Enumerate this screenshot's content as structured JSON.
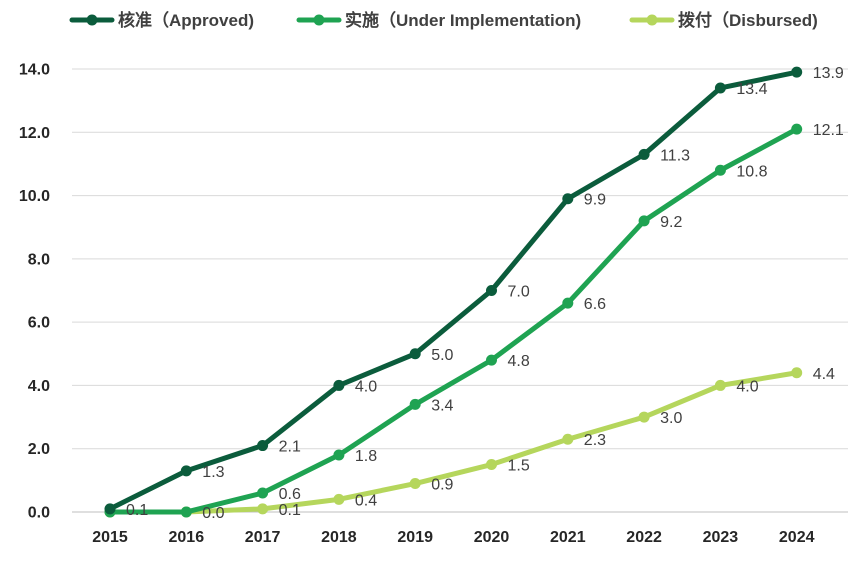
{
  "chart_data": {
    "type": "line",
    "title": "",
    "xlabel": "",
    "ylabel": "",
    "categories": [
      "2015",
      "2016",
      "2017",
      "2018",
      "2019",
      "2020",
      "2021",
      "2022",
      "2023",
      "2024"
    ],
    "ylim": [
      0,
      14
    ],
    "yticks": [
      0,
      2,
      4,
      6,
      8,
      10,
      12,
      14
    ],
    "ytick_labels": [
      "0.0",
      "2.0",
      "4.0",
      "6.0",
      "8.0",
      "10.0",
      "12.0",
      "14.0"
    ],
    "grid": true,
    "legend_position": "top",
    "series": [
      {
        "name": "核准（Approved)",
        "color": "#0b5c3c",
        "values": [
          0.1,
          1.3,
          2.1,
          4.0,
          5.0,
          7.0,
          9.9,
          11.3,
          13.4,
          13.9
        ],
        "labels": [
          "0.1",
          "1.3",
          "2.1",
          "4.0",
          "5.0",
          "7.0",
          "9.9",
          "11.3",
          "13.4",
          "13.9"
        ]
      },
      {
        "name": "实施（Under Implementation)",
        "color": "#1fa352",
        "values": [
          0.0,
          0.0,
          0.6,
          1.8,
          3.4,
          4.8,
          6.6,
          9.2,
          10.8,
          12.1
        ],
        "labels": [
          "",
          "",
          "0.6",
          "1.8",
          "3.4",
          "4.8",
          "6.6",
          "9.2",
          "10.8",
          "12.1"
        ]
      },
      {
        "name": "拨付（Disbursed)",
        "color": "#b5d65c",
        "values": [
          0.0,
          0.0,
          0.1,
          0.4,
          0.9,
          1.5,
          2.3,
          3.0,
          4.0,
          4.4
        ],
        "labels": [
          "",
          "0.0",
          "0.1",
          "0.4",
          "0.9",
          "1.5",
          "2.3",
          "3.0",
          "4.0",
          "4.4"
        ]
      }
    ]
  }
}
